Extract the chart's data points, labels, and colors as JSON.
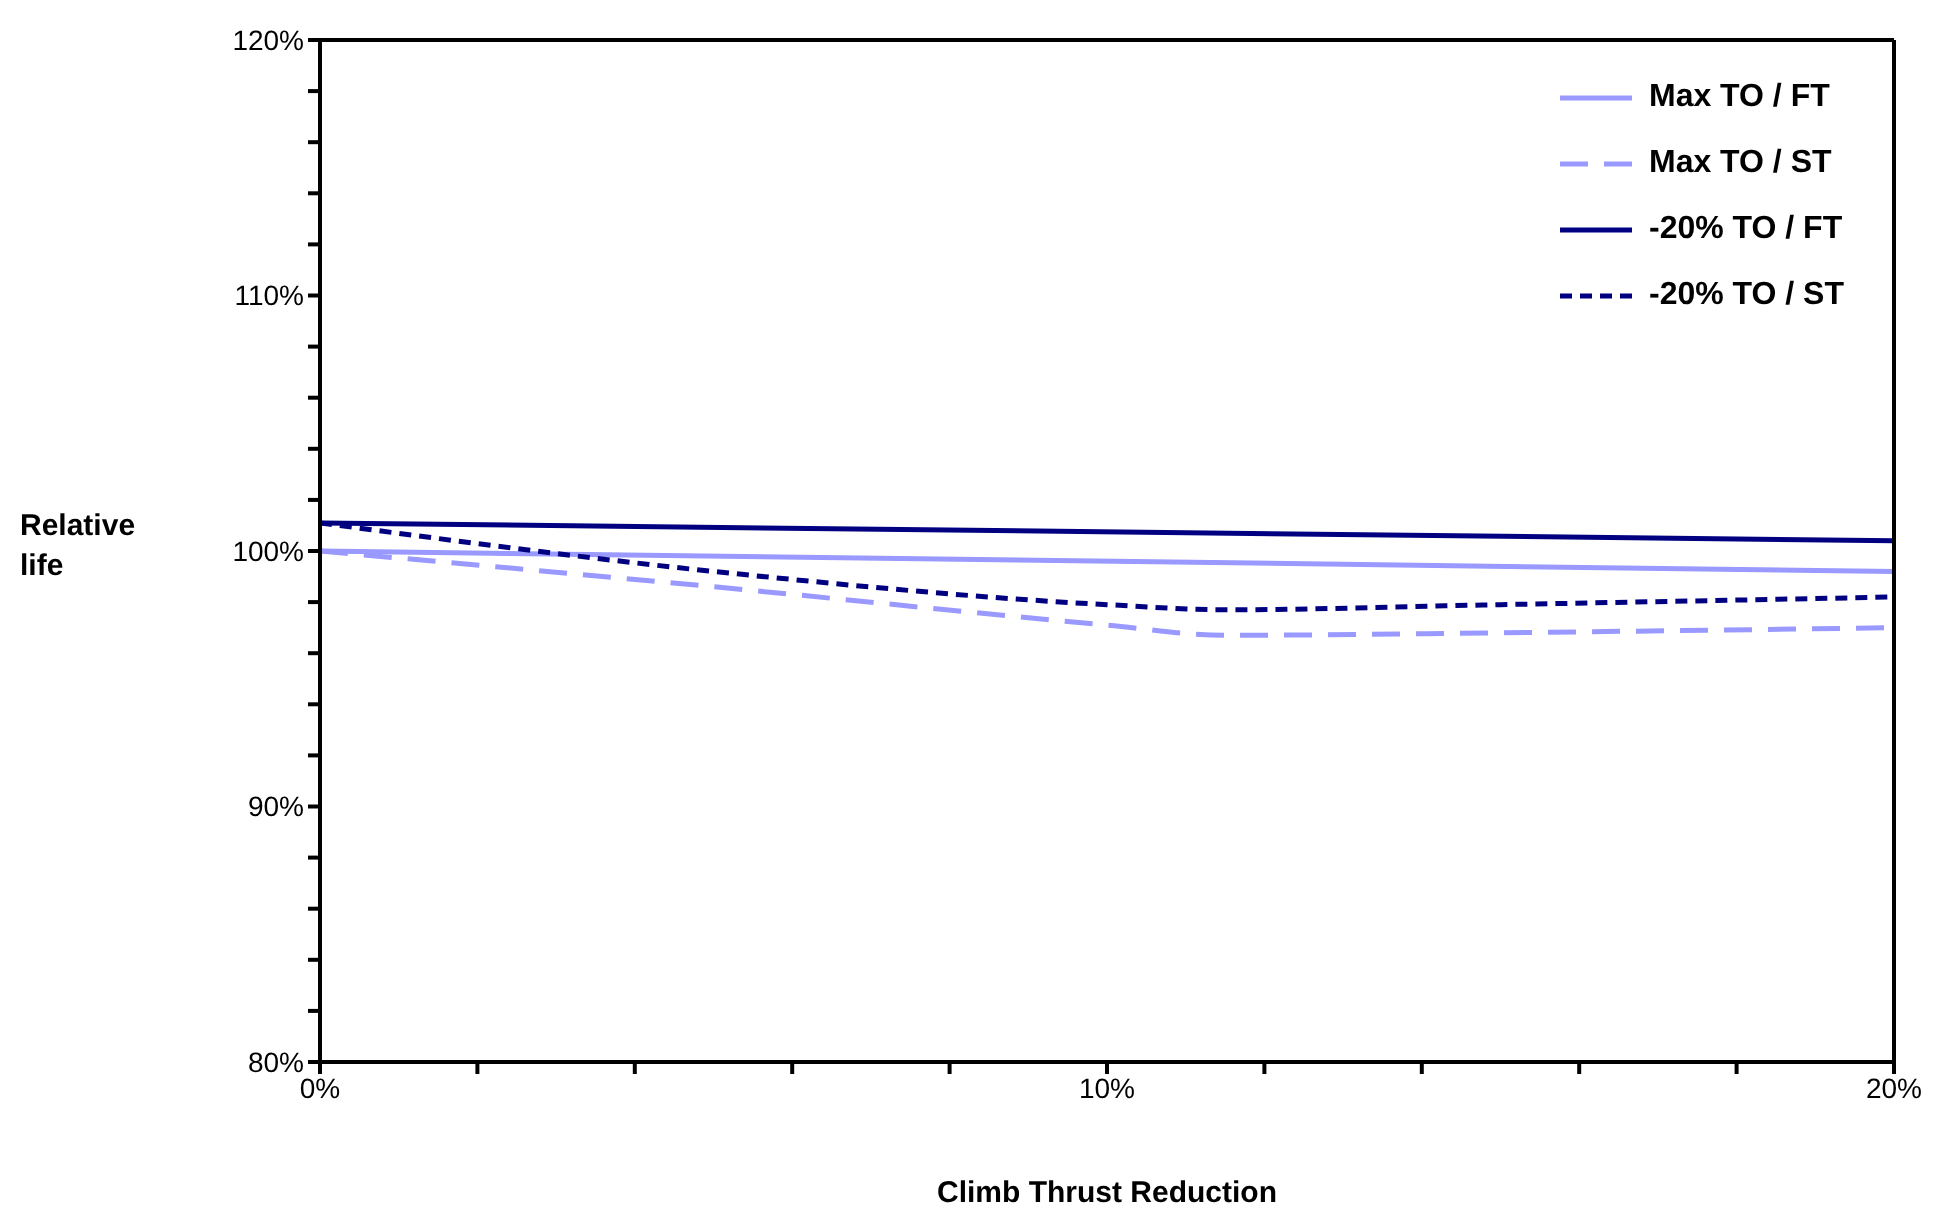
{
  "chart_data": {
    "type": "line",
    "xlabel": "Climb Thrust Reduction",
    "ylabel": "Relative life",
    "xlim": [
      0,
      20
    ],
    "xticks": [
      {
        "value": 0,
        "label": "0%"
      },
      {
        "value": 2,
        "label": null
      },
      {
        "value": 4,
        "label": null
      },
      {
        "value": 6,
        "label": null
      },
      {
        "value": 8,
        "label": null
      },
      {
        "value": 10,
        "label": "10%"
      },
      {
        "value": 12,
        "label": null
      },
      {
        "value": 14,
        "label": null
      },
      {
        "value": 16,
        "label": null
      },
      {
        "value": 18,
        "label": null
      },
      {
        "value": 20,
        "label": "20%"
      }
    ],
    "ylim": [
      80,
      120
    ],
    "yticks": [
      {
        "value": 80,
        "label": "80%"
      },
      {
        "value": 82,
        "label": null
      },
      {
        "value": 84,
        "label": null
      },
      {
        "value": 86,
        "label": null
      },
      {
        "value": 88,
        "label": null
      },
      {
        "value": 90,
        "label": "90%"
      },
      {
        "value": 92,
        "label": null
      },
      {
        "value": 94,
        "label": null
      },
      {
        "value": 96,
        "label": null
      },
      {
        "value": 98,
        "label": null
      },
      {
        "value": 100,
        "label": "100%"
      },
      {
        "value": 102,
        "label": null
      },
      {
        "value": 104,
        "label": null
      },
      {
        "value": 106,
        "label": null
      },
      {
        "value": 108,
        "label": null
      },
      {
        "value": 110,
        "label": "110%"
      },
      {
        "value": 112,
        "label": null
      },
      {
        "value": 114,
        "label": null
      },
      {
        "value": 116,
        "label": null
      },
      {
        "value": 118,
        "label": null
      },
      {
        "value": 120,
        "label": "120%"
      }
    ],
    "legend": "top right",
    "grid": false,
    "marker": "none",
    "series": [
      {
        "name": "Max TO / FT",
        "color": "#9999ff",
        "line_style": "solid",
        "x": [
          0,
          20
        ],
        "values": [
          100.0,
          99.2
        ]
      },
      {
        "name": "Max TO / ST",
        "color": "#9999ff",
        "line_style": "dashed",
        "x": [
          0,
          5,
          10,
          11.5,
          15,
          20
        ],
        "values": [
          100.0,
          98.6,
          97.1,
          96.7,
          96.8,
          97.0
        ]
      },
      {
        "name": "-20% TO / FT",
        "color": "#000080",
        "line_style": "solid",
        "x": [
          0,
          20
        ],
        "values": [
          101.1,
          100.4
        ]
      },
      {
        "name": "-20% TO / ST",
        "color": "#000080",
        "line_style": "dotted",
        "x": [
          0,
          5,
          10,
          11.5,
          15,
          20
        ],
        "values": [
          101.1,
          99.2,
          97.9,
          97.7,
          97.9,
          98.2
        ]
      }
    ]
  }
}
